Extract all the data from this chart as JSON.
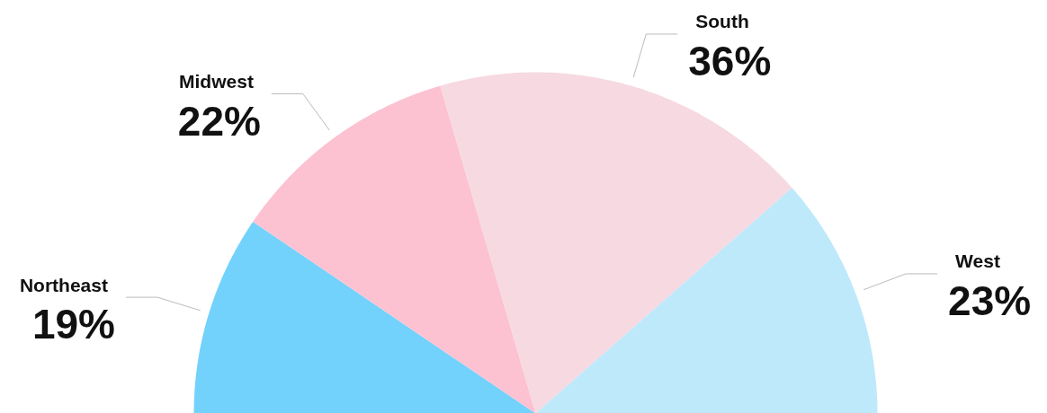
{
  "chart_data": {
    "type": "pie",
    "categories": [
      "Northeast",
      "Midwest",
      "South",
      "West"
    ],
    "values": [
      19,
      22,
      36,
      23
    ],
    "colors": [
      "#73d2fc",
      "#fcc2d2",
      "#f6d9e1",
      "#bde9fb"
    ],
    "value_labels": [
      "19%",
      "22%",
      "36%",
      "23%"
    ]
  }
}
